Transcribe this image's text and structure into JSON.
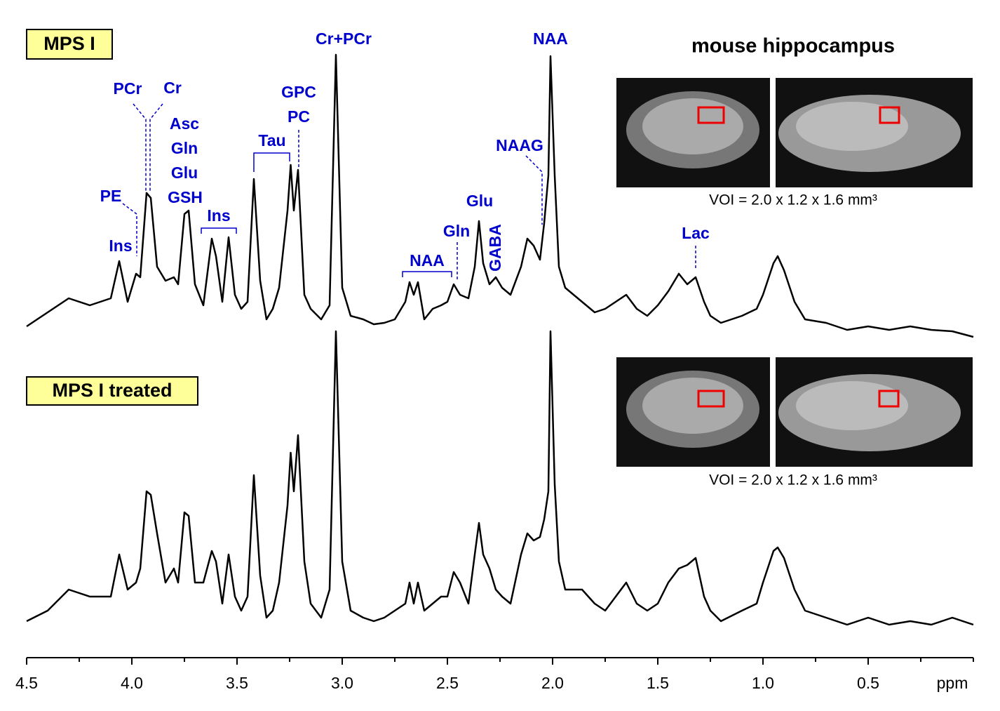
{
  "chart_data": {
    "type": "line",
    "title": "mouse hippocampus",
    "xlabel": "ppm",
    "xlim": [
      4.5,
      0
    ],
    "ylim": [
      0,
      440
    ],
    "xticks": [
      4.5,
      {
        "value": 4,
        "label": "4.0"
      },
      3.5,
      {
        "value": 3,
        "label": "3.0"
      },
      2.5,
      {
        "value": 2,
        "label": "2.0"
      },
      1.5,
      {
        "value": 1,
        "label": "1.0"
      },
      0.5
    ],
    "xticks_minor": [
      4.25,
      3.75,
      3.25,
      2.75,
      2.25,
      1.75,
      1.25,
      0.75,
      0.25,
      0
    ],
    "x": [
      4.5,
      4.4,
      4.3,
      4.2,
      4.1,
      4.06,
      4.02,
      3.98,
      3.96,
      3.93,
      3.91,
      3.88,
      3.84,
      3.8,
      3.78,
      3.75,
      3.73,
      3.7,
      3.66,
      3.62,
      3.6,
      3.57,
      3.54,
      3.51,
      3.48,
      3.45,
      3.42,
      3.39,
      3.36,
      3.33,
      3.3,
      3.26,
      3.245,
      3.23,
      3.21,
      3.18,
      3.15,
      3.1,
      3.06,
      3.03,
      3,
      2.96,
      2.9,
      2.85,
      2.8,
      2.75,
      2.7,
      2.68,
      2.66,
      2.64,
      2.61,
      2.57,
      2.53,
      2.5,
      2.47,
      2.44,
      2.4,
      2.37,
      2.35,
      2.33,
      2.3,
      2.27,
      2.24,
      2.2,
      2.15,
      2.12,
      2.09,
      2.06,
      2.04,
      2.02,
      2.01,
      1.99,
      1.97,
      1.94,
      1.9,
      1.86,
      1.8,
      1.75,
      1.7,
      1.65,
      1.6,
      1.55,
      1.5,
      1.45,
      1.4,
      1.36,
      1.32,
      1.28,
      1.25,
      1.2,
      1.1,
      1.03,
      1,
      0.95,
      0.93,
      0.9,
      0.85,
      0.8,
      0.7,
      0.6,
      0.5,
      0.4,
      0.3,
      0.2,
      0.1,
      0
    ],
    "series": [
      {
        "name": "MPS I",
        "color": "#000000",
        "values": [
          35,
          55,
          75,
          65,
          75,
          128,
          70,
          110,
          105,
          225,
          218,
          120,
          100,
          105,
          95,
          195,
          200,
          95,
          65,
          160,
          135,
          70,
          162,
          80,
          60,
          70,
          245,
          100,
          45,
          60,
          90,
          200,
          265,
          200,
          258,
          80,
          60,
          45,
          65,
          422,
          90,
          50,
          45,
          38,
          40,
          45,
          70,
          98,
          80,
          98,
          45,
          60,
          65,
          70,
          95,
          80,
          75,
          120,
          185,
          125,
          95,
          105,
          90,
          80,
          120,
          160,
          150,
          130,
          182,
          250,
          420,
          250,
          120,
          90,
          80,
          70,
          55,
          60,
          70,
          80,
          60,
          50,
          65,
          85,
          110,
          95,
          105,
          70,
          50,
          40,
          50,
          60,
          80,
          125,
          135,
          115,
          70,
          45,
          40,
          30,
          35,
          30,
          35,
          30,
          28,
          20
        ]
      },
      {
        "name": "MPS I treated",
        "color": "#000000",
        "values": [
          35,
          50,
          80,
          70,
          70,
          130,
          80,
          90,
          110,
          220,
          215,
          160,
          90,
          110,
          90,
          190,
          185,
          90,
          90,
          135,
          120,
          60,
          130,
          70,
          50,
          70,
          243,
          100,
          40,
          50,
          90,
          200,
          275,
          220,
          300,
          120,
          60,
          40,
          80,
          448,
          120,
          50,
          40,
          35,
          40,
          50,
          60,
          90,
          60,
          90,
          50,
          60,
          70,
          70,
          105,
          90,
          60,
          130,
          175,
          130,
          110,
          80,
          70,
          60,
          130,
          160,
          150,
          155,
          180,
          220,
          448,
          230,
          120,
          80,
          80,
          80,
          60,
          50,
          70,
          90,
          60,
          50,
          60,
          90,
          110,
          115,
          125,
          70,
          50,
          35,
          50,
          60,
          90,
          135,
          140,
          125,
          80,
          50,
          40,
          30,
          40,
          30,
          35,
          30,
          40,
          30
        ]
      }
    ],
    "annotations": [
      "Cr+PCr",
      "NAA",
      "PCr",
      "Cr",
      "Asc",
      "Gln",
      "Glu",
      "GSH",
      "PE",
      "Ins",
      "Ins",
      "Tau",
      "GPC",
      "PC",
      "NAAG",
      "Glu",
      "Gln",
      "GABA",
      "NAA",
      "Lac"
    ],
    "captions": [
      "VOI = 2.0 x 1.2 x 1.6 mm³",
      "VOI = 2.0 x 1.2 x 1.6 mm³"
    ]
  }
}
